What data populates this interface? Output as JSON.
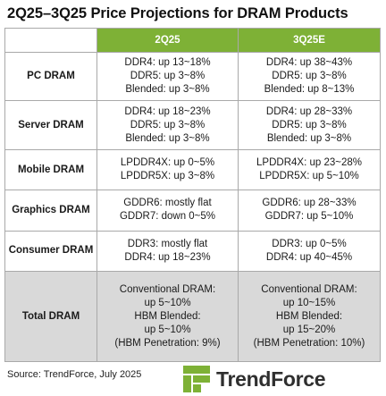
{
  "title": "2Q25–3Q25 Price Projections  for DRAM Products",
  "columns": [
    "2Q25",
    "3Q25E"
  ],
  "rows": [
    {
      "label": "PC DRAM",
      "q2": [
        "DDR4: up 13~18%",
        "DDR5: up 3~8%",
        "Blended: up 3~8%"
      ],
      "q3": [
        "DDR4: up 38~43%",
        "DDR5: up 3~8%",
        "Blended: up 8~13%"
      ]
    },
    {
      "label": "Server DRAM",
      "q2": [
        "DDR4: up 18~23%",
        "DDR5: up 3~8%",
        "Blended: up 3~8%"
      ],
      "q3": [
        "DDR4: up 28~33%",
        "DDR5: up 3~8%",
        "Blended: up 3~8%"
      ]
    },
    {
      "label": "Mobile DRAM",
      "q2": [
        "LPDDR4X: up 0~5%",
        "LPDDR5X: up 3~8%"
      ],
      "q3": [
        "LPDDR4X: up 23~28%",
        "LPDDR5X: up 5~10%"
      ]
    },
    {
      "label": "Graphics DRAM",
      "q2": [
        "GDDR6: mostly flat",
        "GDDR7: down 0~5%"
      ],
      "q3": [
        "GDDR6: up 28~33%",
        "GDDR7: up 5~10%"
      ]
    },
    {
      "label": "Consumer DRAM",
      "q2": [
        "DDR3: mostly flat",
        "DDR4: up 18~23%"
      ],
      "q3": [
        "DDR3: up 0~5%",
        "DDR4: up 40~45%"
      ]
    },
    {
      "label": "Total DRAM",
      "q2": [
        "Conventional DRAM:",
        "up 5~10%",
        "HBM Blended:",
        "up 5~10%",
        "(HBM Penetration: 9%)"
      ],
      "q3": [
        "Conventional DRAM:",
        "up 10~15%",
        "HBM Blended:",
        "up 15~20%",
        "(HBM Penetration: 10%)"
      ]
    }
  ],
  "source": "Source: TrendForce, July 2025",
  "logo": {
    "text": "TrendForce",
    "icon": "trendforce-logo-icon",
    "color": "#7eb136"
  }
}
